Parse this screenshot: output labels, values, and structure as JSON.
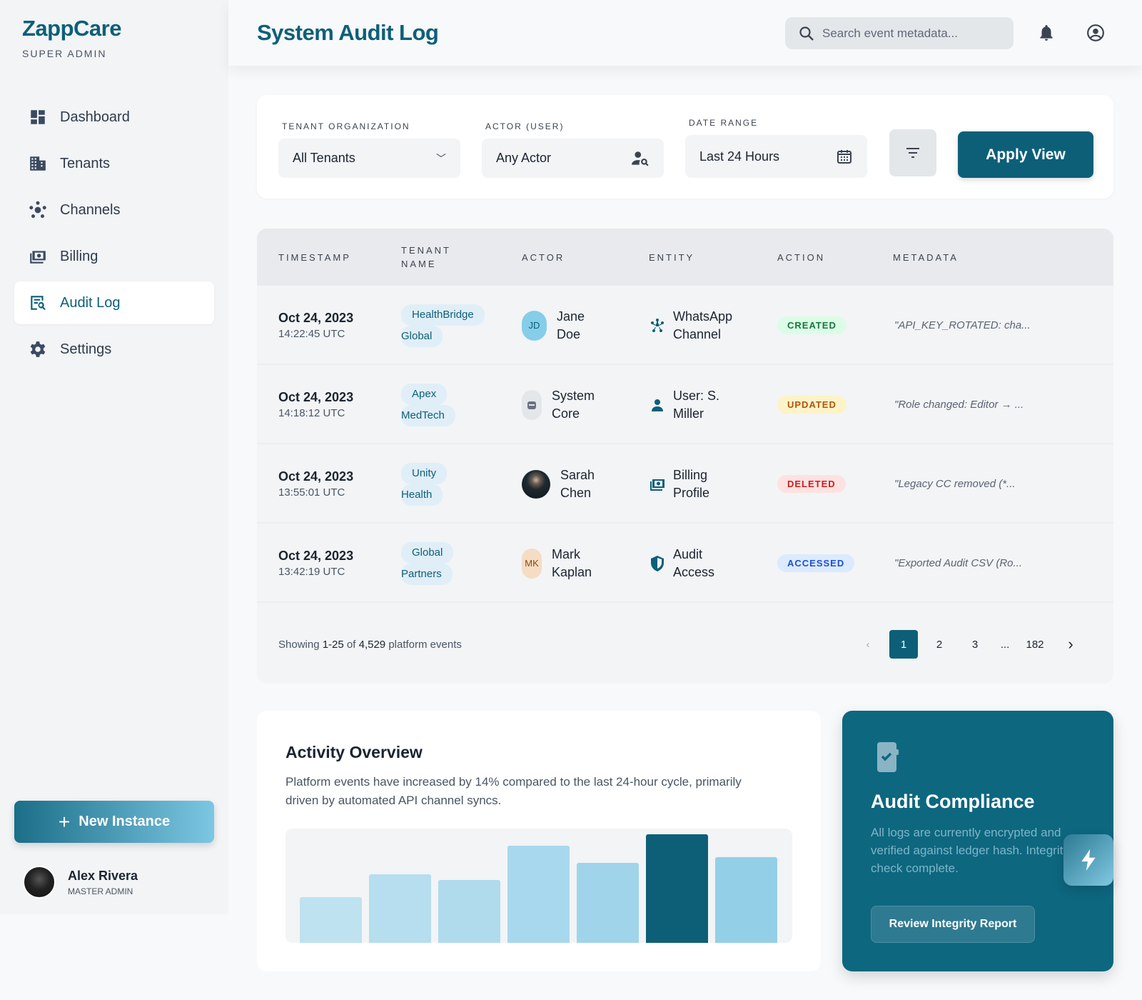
{
  "brand": {
    "name": "ZappCare",
    "subtitle": "SUPER ADMIN"
  },
  "sidebar": {
    "items": [
      {
        "label": "Dashboard",
        "icon": "dashboard-icon"
      },
      {
        "label": "Tenants",
        "icon": "building-icon"
      },
      {
        "label": "Channels",
        "icon": "hub-icon"
      },
      {
        "label": "Billing",
        "icon": "payments-icon"
      },
      {
        "label": "Audit Log",
        "icon": "audit-icon",
        "active": true
      },
      {
        "label": "Settings",
        "icon": "gear-icon"
      }
    ],
    "new_instance": "New Instance",
    "user": {
      "name": "Alex Rivera",
      "role": "MASTER ADMIN"
    }
  },
  "header": {
    "title": "System Audit Log",
    "search_placeholder": "Search event metadata..."
  },
  "filters": {
    "tenant_label": "TENANT ORGANIZATION",
    "tenant_value": "All Tenants",
    "actor_label": "ACTOR (USER)",
    "actor_value": "Any Actor",
    "date_label": "DATE RANGE",
    "date_value": "Last 24 Hours",
    "apply": "Apply View"
  },
  "table": {
    "headers": [
      "TIMESTAMP",
      "TENANT NAME",
      "ACTOR",
      "ENTITY",
      "ACTION",
      "METADATA"
    ],
    "rows": [
      {
        "date": "Oct 24, 2023",
        "time": "14:22:45 UTC",
        "tenant1": "HealthBridge",
        "tenant2": "Global",
        "actor1": "Jane",
        "actor2": "Doe",
        "initials": "JD",
        "entity1": "WhatsApp",
        "entity2": "Channel",
        "action": "CREATED",
        "meta": "\"API_KEY_ROTATED: cha..."
      },
      {
        "date": "Oct 24, 2023",
        "time": "14:18:12 UTC",
        "tenant1": "Apex",
        "tenant2": "MedTech",
        "actor1": "System",
        "actor2": "Core",
        "initials": "",
        "entity1": "User: S.",
        "entity2": "Miller",
        "action": "UPDATED",
        "meta": "\"Role changed: Editor → ..."
      },
      {
        "date": "Oct 24, 2023",
        "time": "13:55:01 UTC",
        "tenant1": "Unity",
        "tenant2": "Health",
        "actor1": "Sarah",
        "actor2": "Chen",
        "initials": "",
        "entity1": "Billing",
        "entity2": "Profile",
        "action": "DELETED",
        "meta": "\"Legacy CC removed (*..."
      },
      {
        "date": "Oct 24, 2023",
        "time": "13:42:19 UTC",
        "tenant1": "Global",
        "tenant2": "Partners",
        "actor1": "Mark",
        "actor2": "Kaplan",
        "initials": "MK",
        "entity1": "Audit",
        "entity2": "Access",
        "action": "ACCESSED",
        "meta": "\"Exported Audit CSV (Ro..."
      }
    ],
    "footer": {
      "showing_pre": "Showing",
      "range": "1-25",
      "of": "of",
      "total": "4,529",
      "suffix": "platform events"
    },
    "pages": [
      "1",
      "2",
      "3",
      "...",
      "182"
    ]
  },
  "activity": {
    "title": "Activity Overview",
    "description": "Platform events have increased by 14% compared to the last 24-hour cycle, primarily driven by automated API channel syncs."
  },
  "chart_data": {
    "type": "bar",
    "values": [
      40,
      60,
      55,
      85,
      70,
      95,
      75
    ],
    "highlight_index": 5
  },
  "compliance": {
    "title": "Audit Compliance",
    "description": "All logs are currently encrypted and verified against ledger hash. Integrity check complete.",
    "button": "Review Integrity Report"
  },
  "colors": {
    "primary": "#0d5f78",
    "created": "#137a3a",
    "updated": "#b45309",
    "deleted": "#c81e1e",
    "accessed": "#1d4ed8"
  }
}
